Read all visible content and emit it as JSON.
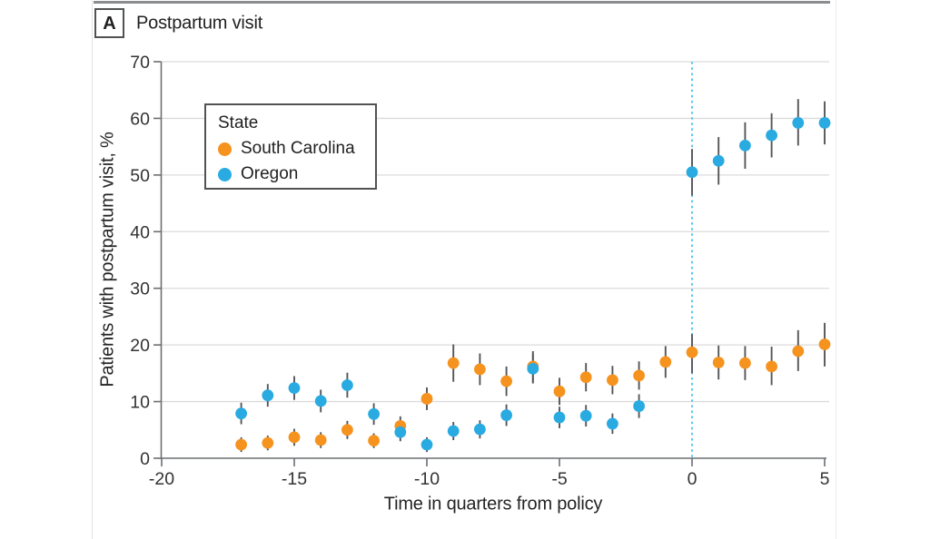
{
  "figure": {
    "panel_label": "A",
    "title": "Postpartum visit"
  },
  "chart_data": {
    "type": "scatter",
    "title": "Postpartum visit",
    "xlabel": "Time in quarters from policy",
    "ylabel": "Patients with postpartum visit, %",
    "xlim": [
      -20,
      5
    ],
    "ylim": [
      0,
      70
    ],
    "xticks": [
      -20,
      -15,
      -10,
      -5,
      0,
      5
    ],
    "yticks": [
      0,
      10,
      20,
      30,
      40,
      50,
      60,
      70
    ],
    "grid": "horizontal",
    "error_bars": "95% CI vertical lines, no caps",
    "reference_line": {
      "x": 0,
      "style": "dotted",
      "color": "#53c3ee"
    },
    "legend": {
      "title": "State",
      "position": "upper-left"
    },
    "colors": {
      "south_carolina": "#f6921e",
      "oregon": "#29abe2",
      "error_bar": "#55565a",
      "axis": "#6d6e71",
      "gridline": "#dbdbdc"
    },
    "series": [
      {
        "name": "South Carolina",
        "color": "#f6921e",
        "points": [
          {
            "x": -17,
            "y": 2.4,
            "lo": 1.1,
            "hi": 3.7
          },
          {
            "x": -16,
            "y": 2.7,
            "lo": 1.4,
            "hi": 4.0
          },
          {
            "x": -15,
            "y": 3.7,
            "lo": 2.2,
            "hi": 5.2
          },
          {
            "x": -14,
            "y": 3.2,
            "lo": 1.8,
            "hi": 4.6
          },
          {
            "x": -13,
            "y": 5.0,
            "lo": 3.4,
            "hi": 6.6
          },
          {
            "x": -12,
            "y": 3.1,
            "lo": 1.8,
            "hi": 4.4
          },
          {
            "x": -11,
            "y": 5.7,
            "lo": 4.0,
            "hi": 7.4
          },
          {
            "x": -10,
            "y": 10.5,
            "lo": 8.5,
            "hi": 12.5
          },
          {
            "x": -9,
            "y": 16.8,
            "lo": 13.5,
            "hi": 20.1
          },
          {
            "x": -8,
            "y": 15.7,
            "lo": 12.9,
            "hi": 18.5
          },
          {
            "x": -7,
            "y": 13.6,
            "lo": 11.0,
            "hi": 16.2
          },
          {
            "x": -6,
            "y": 16.2,
            "lo": 13.5,
            "hi": 18.9
          },
          {
            "x": -5,
            "y": 11.8,
            "lo": 9.4,
            "hi": 14.2
          },
          {
            "x": -4,
            "y": 14.3,
            "lo": 11.8,
            "hi": 16.8
          },
          {
            "x": -3,
            "y": 13.8,
            "lo": 11.3,
            "hi": 16.3
          },
          {
            "x": -2,
            "y": 14.6,
            "lo": 12.1,
            "hi": 17.1
          },
          {
            "x": -1,
            "y": 17.0,
            "lo": 14.2,
            "hi": 19.8
          },
          {
            "x": 0,
            "y": 18.7,
            "lo": 15.0,
            "hi": 21.9
          },
          {
            "x": 1,
            "y": 16.9,
            "lo": 13.9,
            "hi": 19.9
          },
          {
            "x": 2,
            "y": 16.8,
            "lo": 13.8,
            "hi": 19.8
          },
          {
            "x": 3,
            "y": 16.2,
            "lo": 12.9,
            "hi": 19.7
          },
          {
            "x": 4,
            "y": 18.9,
            "lo": 15.4,
            "hi": 22.6
          },
          {
            "x": 5,
            "y": 20.1,
            "lo": 16.2,
            "hi": 23.9
          }
        ]
      },
      {
        "name": "Oregon",
        "color": "#29abe2",
        "points": [
          {
            "x": -17,
            "y": 7.9,
            "lo": 6.0,
            "hi": 9.8
          },
          {
            "x": -16,
            "y": 11.1,
            "lo": 9.1,
            "hi": 13.1
          },
          {
            "x": -15,
            "y": 12.4,
            "lo": 10.3,
            "hi": 14.5
          },
          {
            "x": -14,
            "y": 10.1,
            "lo": 8.1,
            "hi": 12.1
          },
          {
            "x": -13,
            "y": 12.9,
            "lo": 10.7,
            "hi": 15.1
          },
          {
            "x": -12,
            "y": 7.8,
            "lo": 5.9,
            "hi": 9.7
          },
          {
            "x": -11,
            "y": 4.6,
            "lo": 3.0,
            "hi": 6.2
          },
          {
            "x": -10,
            "y": 2.4,
            "lo": 1.1,
            "hi": 3.7
          },
          {
            "x": -9,
            "y": 4.8,
            "lo": 3.2,
            "hi": 6.4
          },
          {
            "x": -8,
            "y": 5.1,
            "lo": 3.5,
            "hi": 6.7
          },
          {
            "x": -7,
            "y": 7.6,
            "lo": 5.7,
            "hi": 9.5
          },
          {
            "x": -6,
            "y": 15.8,
            "lo": 13.2,
            "hi": 18.4
          },
          {
            "x": -5,
            "y": 7.2,
            "lo": 5.3,
            "hi": 9.1
          },
          {
            "x": -4,
            "y": 7.5,
            "lo": 5.6,
            "hi": 9.4
          },
          {
            "x": -3,
            "y": 6.1,
            "lo": 4.3,
            "hi": 7.9
          },
          {
            "x": -2,
            "y": 9.2,
            "lo": 7.1,
            "hi": 11.3
          },
          {
            "x": 0,
            "y": 50.5,
            "lo": 46.4,
            "hi": 54.6
          },
          {
            "x": 1,
            "y": 52.5,
            "lo": 48.3,
            "hi": 56.7
          },
          {
            "x": 2,
            "y": 55.2,
            "lo": 51.1,
            "hi": 59.3
          },
          {
            "x": 3,
            "y": 57.0,
            "lo": 53.1,
            "hi": 60.9
          },
          {
            "x": 4,
            "y": 59.2,
            "lo": 55.2,
            "hi": 63.4
          },
          {
            "x": 5,
            "y": 59.2,
            "lo": 55.4,
            "hi": 63.0
          }
        ]
      }
    ]
  }
}
